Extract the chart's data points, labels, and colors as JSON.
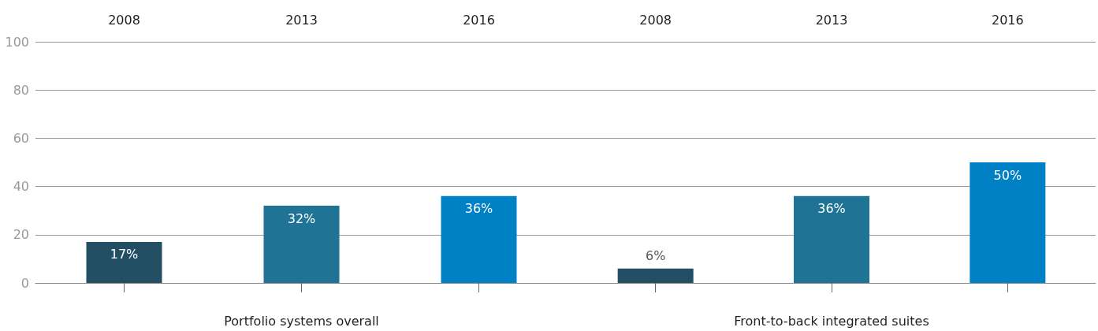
{
  "chart_data": [
    {
      "type": "bar",
      "xlabel": "Portfolio systems overall",
      "categories": [
        "2008",
        "2013",
        "2016"
      ],
      "values": [
        17,
        32,
        36
      ],
      "colors": [
        "#224f63",
        "#1f7394",
        "#0081c6"
      ],
      "value_labels": [
        "17%",
        "32%",
        "36%"
      ],
      "ylim": [
        0,
        100
      ],
      "yticks": [
        0,
        20,
        40,
        60,
        80,
        100
      ],
      "grid": "y"
    },
    {
      "type": "bar",
      "xlabel": "Front-to-back integrated suites",
      "categories": [
        "2008",
        "2013",
        "2016"
      ],
      "values": [
        6,
        36,
        50
      ],
      "colors": [
        "#224f63",
        "#1f7394",
        "#0081c6"
      ],
      "value_labels": [
        "6%",
        "36%",
        "50%"
      ],
      "ylim": [
        0,
        100
      ],
      "yticks": [
        0,
        20,
        40,
        60,
        80,
        100
      ],
      "grid": "y",
      "tick_labels": "x"
    }
  ]
}
